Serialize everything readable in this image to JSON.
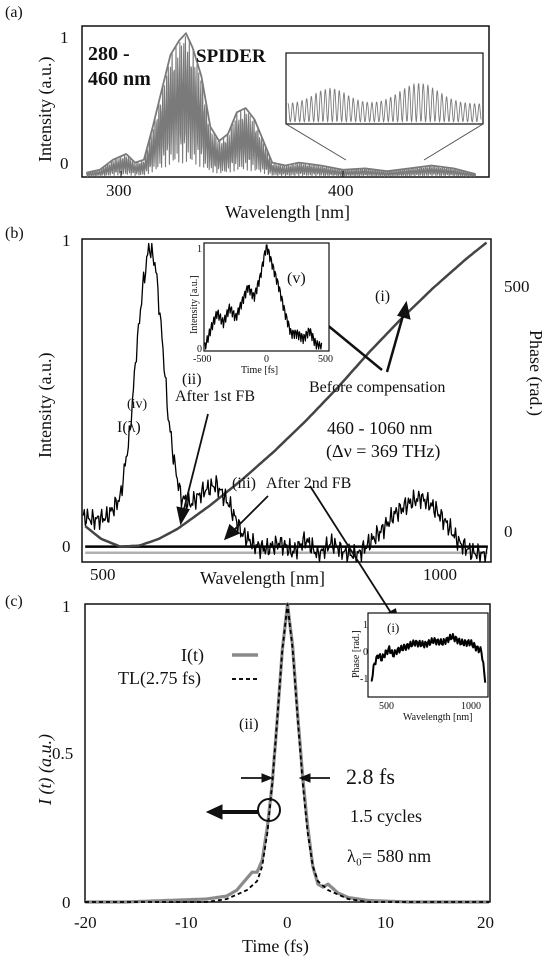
{
  "figure": {
    "colors": {
      "ink": "#111111",
      "spectrum_gray": "#7a7a7a",
      "phase_line": "#444444",
      "pulse_gray": "#8a8a8a",
      "inset_black": "#000000",
      "after2nd_gray": "#b0b0b0"
    }
  },
  "chart_data": [
    {
      "panel_label": "(a)",
      "type": "line",
      "xlabel": "Wavelength [nm]",
      "ylabel": "Intensity (a.u.)",
      "xlim": [
        282,
        466
      ],
      "ylim": [
        0,
        1.05
      ],
      "x_ticks": [
        "300",
        "400"
      ],
      "y_ticks": [
        "0",
        "1"
      ],
      "annotations": {
        "range": [
          "280 -",
          "460 nm"
        ],
        "method": "SPIDER"
      },
      "series": [
        {
          "x": [
            284,
            290,
            296,
            302,
            306,
            310,
            314,
            318,
            322,
            326,
            329,
            332,
            336,
            340,
            344,
            348,
            352,
            356,
            360,
            364,
            368,
            374,
            380,
            390,
            400,
            410,
            420,
            430,
            440,
            450,
            460
          ],
          "y": [
            0.03,
            0.05,
            0.12,
            0.16,
            0.1,
            0.12,
            0.35,
            0.6,
            0.85,
            0.95,
            1.0,
            0.9,
            0.7,
            0.35,
            0.25,
            0.3,
            0.45,
            0.48,
            0.4,
            0.25,
            0.1,
            0.08,
            0.1,
            0.08,
            0.05,
            0.06,
            0.04,
            0.06,
            0.08,
            0.06,
            0.02
          ]
        }
      ],
      "inset": {
        "type": "line",
        "note": "magnified SPIDER fringes"
      }
    },
    {
      "panel_label": "(b)",
      "type": "line",
      "xlabel": "Wavelength [nm]",
      "ylabel": "Intensity (a.u.)",
      "ylabel_right": "Phase (rad.)",
      "xlim": [
        450,
        1090
      ],
      "ylim": [
        0,
        1
      ],
      "ylim_right": [
        -30,
        600
      ],
      "x_ticks": [
        "500",
        "1000"
      ],
      "y_ticks": [
        "0",
        "1"
      ],
      "y_ticks_right": [
        "0",
        "500"
      ],
      "annotations": {
        "i": "(i)",
        "ii": "(ii)",
        "ii_text": "After 1st FB",
        "iii": "(iii)",
        "iii_text": "After 2nd FB",
        "iv": "(iv)",
        "iv_curve": "I(λ)",
        "v": "(v)",
        "before": "Before compensation",
        "range": "460 - 1060 nm",
        "bandwidth": "(Δν = 369 THz)"
      },
      "series": [
        {
          "label": "I(λ)",
          "x": [
            452,
            470,
            490,
            510,
            525,
            535,
            545,
            555,
            565,
            575,
            585,
            595,
            605,
            620,
            640,
            660,
            680,
            700,
            720,
            740,
            760,
            780,
            800,
            820,
            840,
            860,
            880,
            900,
            920,
            940,
            960,
            980,
            1000,
            1020,
            1040,
            1060,
            1085
          ],
          "y": [
            0.14,
            0.13,
            0.14,
            0.2,
            0.4,
            0.65,
            0.85,
            0.98,
            0.92,
            0.7,
            0.45,
            0.3,
            0.2,
            0.18,
            0.22,
            0.24,
            0.18,
            0.09,
            0.05,
            0.04,
            0.06,
            0.03,
            0.07,
            0.02,
            0.06,
            0.03,
            0.02,
            0.06,
            0.1,
            0.15,
            0.18,
            0.2,
            0.17,
            0.12,
            0.06,
            0.03,
            0.02
          ]
        },
        {
          "label": "phase before compensation",
          "x": [
            455,
            480,
            510,
            540,
            570,
            600,
            650,
            700,
            750,
            800,
            850,
            900,
            950,
            1000,
            1050,
            1085
          ],
          "y": [
            40,
            15,
            0,
            2,
            15,
            35,
            80,
            130,
            185,
            245,
            310,
            380,
            445,
            505,
            560,
            595
          ]
        },
        {
          "label": "phase after 1st FB",
          "x": [
            455,
            1085
          ],
          "y": [
            0,
            0
          ]
        },
        {
          "label": "phase after 2nd FB",
          "x": [
            455,
            1085
          ],
          "y": [
            -12,
            -12
          ]
        }
      ],
      "inset": {
        "type": "line",
        "xlabel": "Time [fs]",
        "ylabel": "Intensity [a.u.]",
        "xlim": [
          -500,
          500
        ],
        "ylim": [
          0,
          1
        ],
        "x_ticks": [
          "-500",
          "0",
          "500"
        ],
        "y_ticks": [
          "0",
          "1"
        ],
        "series": [
          {
            "x": [
              -500,
              -450,
              -400,
              -350,
              -300,
              -250,
              -200,
              -150,
              -100,
              -50,
              0,
              50,
              100,
              150,
              200,
              250,
              300,
              350,
              400,
              450
            ],
            "y": [
              0.02,
              0.2,
              0.35,
              0.25,
              0.4,
              0.3,
              0.45,
              0.6,
              0.5,
              0.7,
              1.0,
              0.8,
              0.6,
              0.35,
              0.15,
              0.15,
              0.1,
              0.18,
              0.05,
              0.02
            ]
          }
        ]
      }
    },
    {
      "panel_label": "(c)",
      "type": "line",
      "xlabel": "Time (fs)",
      "ylabel": "I (t) (a.u.)",
      "xlim": [
        -20,
        20
      ],
      "ylim": [
        0,
        1
      ],
      "x_ticks": [
        "-20",
        "-10",
        "0",
        "10",
        "20"
      ],
      "y_ticks": [
        "0",
        "0.5",
        "1"
      ],
      "annotations": {
        "ii": "(ii)",
        "fwhm": "2.8 fs",
        "cycles": "1.5 cycles",
        "lambda0": "λ₀= 580 nm"
      },
      "series": [
        {
          "name": "I(t)",
          "x": [
            -20,
            -16,
            -12,
            -8,
            -6,
            -5,
            -4,
            -3.5,
            -3,
            -2.5,
            -2,
            -1.5,
            -1,
            -0.5,
            0,
            0.5,
            1,
            1.5,
            2,
            2.5,
            3,
            3.5,
            4,
            5,
            6,
            8,
            12,
            16,
            20
          ],
          "y": [
            0,
            0,
            0.005,
            0.01,
            0.02,
            0.04,
            0.08,
            0.1,
            0.1,
            0.14,
            0.25,
            0.4,
            0.62,
            0.85,
            1.0,
            0.86,
            0.63,
            0.42,
            0.25,
            0.12,
            0.06,
            0.05,
            0.06,
            0.03,
            0.015,
            0.005,
            0,
            0,
            0
          ]
        },
        {
          "name": "TL(2.75 fs)",
          "x": [
            -20,
            -8,
            -6,
            -4,
            -3,
            -2.5,
            -2,
            -1.5,
            -1,
            -0.5,
            0,
            0.5,
            1,
            1.5,
            2,
            2.5,
            3,
            4,
            6,
            8,
            20
          ],
          "y": [
            0,
            0,
            0.01,
            0.04,
            0.07,
            0.12,
            0.23,
            0.4,
            0.62,
            0.85,
            1.0,
            0.85,
            0.62,
            0.4,
            0.23,
            0.12,
            0.07,
            0.04,
            0.01,
            0,
            0
          ]
        }
      ],
      "inset": {
        "type": "line",
        "label": "(i)",
        "xlabel": "Wavelength [nm]",
        "ylabel": "Phase [rad.]",
        "xlim": [
          450,
          1090
        ],
        "ylim": [
          -1,
          1
        ],
        "x_ticks": [
          "500",
          "1000"
        ],
        "y_ticks": [
          "1",
          "0",
          "-1"
        ],
        "series": [
          {
            "x": [
              460,
              480,
              500,
              520,
              540,
              560,
              580,
              600,
              650,
              700,
              750,
              800,
              850,
              900,
              950,
              1000,
              1040,
              1060,
              1080
            ],
            "y": [
              -0.7,
              -0.2,
              0.0,
              -0.1,
              0.05,
              0.15,
              0.0,
              0.1,
              0.2,
              0.3,
              0.25,
              0.35,
              0.3,
              0.45,
              0.3,
              0.3,
              0.15,
              0.1,
              -0.6
            ]
          }
        ]
      }
    }
  ]
}
